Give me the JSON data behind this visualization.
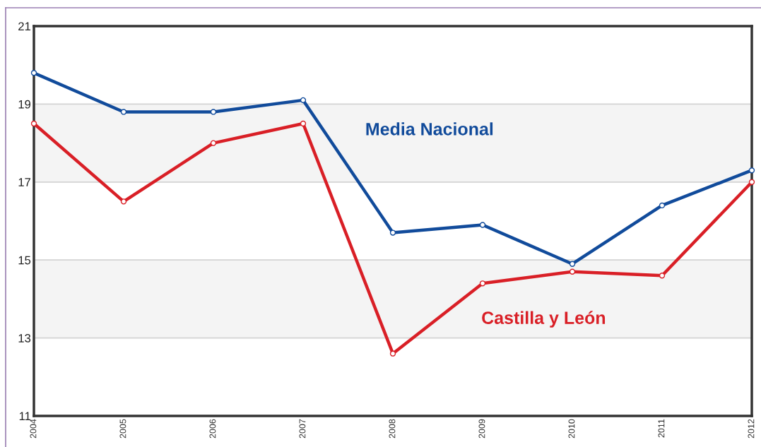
{
  "chart_data": {
    "type": "line",
    "x": [
      2004,
      2005,
      2006,
      2007,
      2008,
      2009,
      2010,
      2011,
      2012
    ],
    "xlim": [
      2004,
      2012
    ],
    "xticks": [
      2004,
      2005,
      2006,
      2007,
      2008,
      2009,
      2010,
      2011,
      2012
    ],
    "ylim": [
      11,
      21
    ],
    "yticks": [
      11,
      13,
      15,
      17,
      19,
      21
    ],
    "series": [
      {
        "name": "Media Nacional",
        "color": "#114b9b",
        "values": [
          19.8,
          18.8,
          18.8,
          19.1,
          15.7,
          15.9,
          14.9,
          16.4,
          17.3
        ]
      },
      {
        "name": "Castilla y León",
        "color": "#d91f26",
        "values": [
          18.5,
          16.5,
          18.0,
          18.5,
          12.6,
          14.4,
          14.7,
          14.6,
          17.0
        ]
      }
    ],
    "bands": [
      {
        "axis": "y",
        "from": 17,
        "to": 19,
        "color": "#f4f4f4"
      },
      {
        "axis": "y",
        "from": 13,
        "to": 15,
        "color": "#f4f4f4"
      }
    ],
    "grid": "y",
    "marker": "circle",
    "line_style": "solid",
    "legend": false
  }
}
